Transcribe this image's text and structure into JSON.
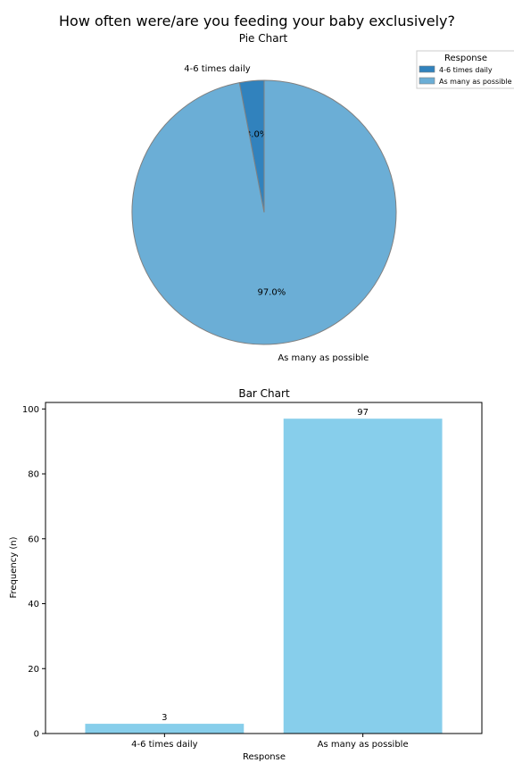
{
  "figure_title": "How often were/are you feeding your baby exclusively?",
  "colors": {
    "slice_small": "#3182bd",
    "slice_large": "#6baed6",
    "bar": "#87ceeb",
    "edge": "#808080"
  },
  "chart_data": [
    {
      "type": "pie",
      "title": "Pie Chart",
      "labels": [
        "4-6 times daily",
        "As many as possible"
      ],
      "values": [
        3.0,
        97.0
      ],
      "pct_labels": [
        "3.0%",
        "97.0%"
      ],
      "colors": [
        "#3182bd",
        "#6baed6"
      ],
      "start_angle": "top, counter-clockwise",
      "legend": {
        "title": "Response",
        "entries": [
          "4-6 times daily",
          "As many as possible"
        ],
        "placement": "top-right"
      }
    },
    {
      "type": "bar",
      "title": "Bar Chart",
      "categories": [
        "4-6 times daily",
        "As many as possible"
      ],
      "values": [
        3,
        97
      ],
      "value_labels": [
        "3",
        "97"
      ],
      "xlabel": "Response",
      "ylabel": "Frequency (n)",
      "ylim": [
        0,
        102
      ],
      "yticks": [
        0,
        20,
        40,
        60,
        80,
        100
      ],
      "ytick_labels": [
        "0",
        "20",
        "40",
        "60",
        "80",
        "100"
      ],
      "grid": false
    }
  ]
}
